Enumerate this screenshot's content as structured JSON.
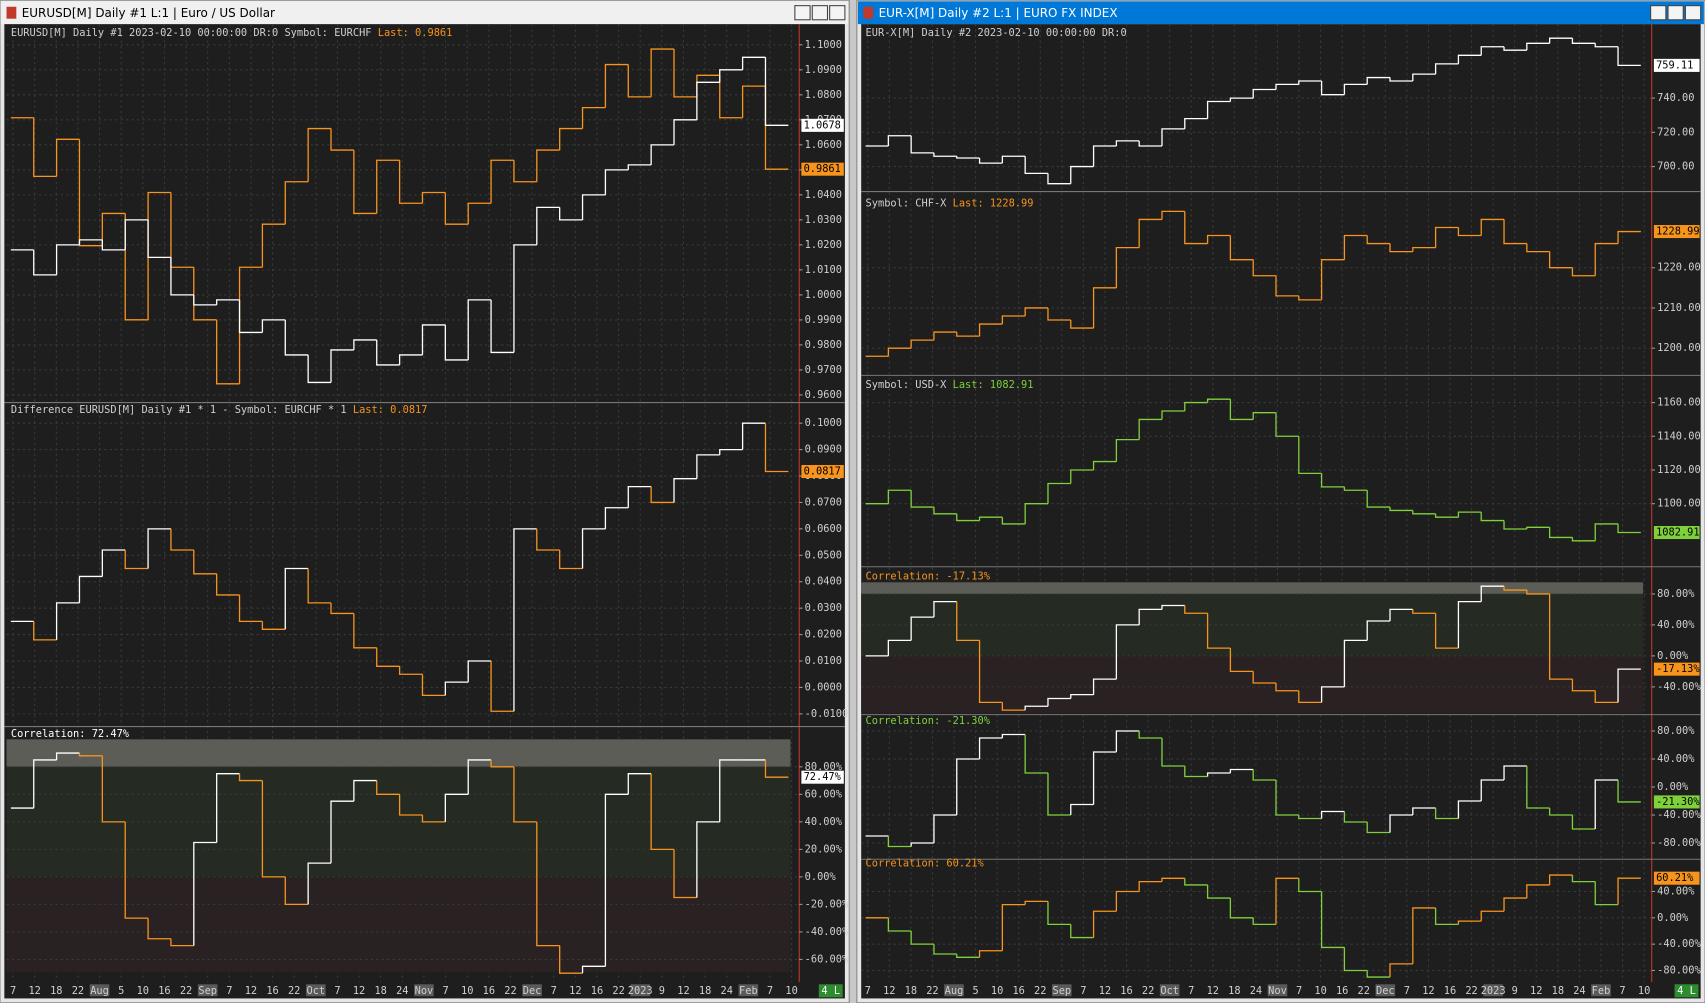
{
  "windows": [
    {
      "title": "EURUSD[M]  Daily  #1 L:1 | Euro / US Dollar",
      "status": "4 L",
      "xlabels": [
        "7",
        "12",
        "18",
        "22",
        "Aug",
        "5",
        "10",
        "16",
        "22",
        "Sep",
        "7",
        "12",
        "16",
        "22",
        "Oct",
        "7",
        "12",
        "18",
        "24",
        "Nov",
        "7",
        "10",
        "16",
        "22",
        "Dec",
        "7",
        "12",
        "16",
        "22",
        "2023",
        "9",
        "12",
        "18",
        "24",
        "Feb",
        "7",
        "10"
      ],
      "panes": [
        {
          "header": [
            {
              "text": "EURUSD[M]  Daily  #1 2023-02-10 00:00:00 DR:0 Symbol: EURCHF",
              "color": "#cfcfcf"
            },
            {
              "text": "  Last: 0.9861",
              "color": "#f7941d"
            }
          ],
          "ylim": [
            0.958,
            1.105
          ],
          "y2lim": [
            0.9475,
            1.009
          ],
          "yticks": [
            {
              "value": 1.1,
              "label": "1.1000"
            },
            {
              "value": 1.09,
              "label": "1.0900"
            },
            {
              "value": 1.08,
              "label": "1.0800"
            },
            {
              "value": 1.07,
              "label": "1.0700"
            },
            {
              "value": 1.06,
              "label": "1.0600"
            },
            {
              "value": 1.05,
              "label": "1.0500"
            },
            {
              "value": 1.04,
              "label": "1.0400"
            },
            {
              "value": 1.03,
              "label": "1.0300"
            },
            {
              "value": 1.02,
              "label": "1.0200"
            },
            {
              "value": 1.01,
              "label": "1.0100"
            },
            {
              "value": 1,
              "label": "1.0000"
            },
            {
              "value": 0.99,
              "label": "0.9900"
            },
            {
              "value": 0.98,
              "label": "0.9800"
            },
            {
              "value": 0.97,
              "label": "0.9700"
            },
            {
              "value": 0.96,
              "label": "0.9600"
            }
          ],
          "series": [
            {
              "color": "#f7941d",
              "axis": "y2",
              "label_color": "#f7941d",
              "last_label": "0.9861",
              "values": [
                0.9947,
                0.9849,
                0.9911,
                0.9733,
                0.9787,
                0.9609,
                0.9822,
                0.9697,
                0.9609,
                0.9502,
                0.9697,
                0.9769,
                0.984,
                0.9929,
                0.9893,
                0.9787,
                0.9876,
                0.9804,
                0.9822,
                0.9769,
                0.9804,
                0.9876,
                0.984,
                0.9893,
                0.9929,
                0.9964,
                1.0036,
                0.9982,
                1.0062,
                0.9982,
                1.0018,
                0.9947,
                1.0,
                0.9861
              ]
            },
            {
              "color": "#ffffff",
              "label_color": "#ffffff",
              "last_label": "1.0678",
              "values": [
                1.018,
                1.008,
                1.02,
                1.022,
                1.018,
                1.03,
                1.015,
                1.0,
                0.996,
                0.998,
                0.985,
                0.99,
                0.976,
                0.965,
                0.978,
                0.982,
                0.972,
                0.976,
                0.988,
                0.974,
                0.998,
                0.977,
                1.02,
                1.035,
                1.03,
                1.04,
                1.05,
                1.052,
                1.06,
                1.07,
                1.085,
                1.09,
                1.095,
                1.0678
              ]
            }
          ]
        },
        {
          "header": [
            {
              "text": "Difference EURUSD[M]  Daily  #1 * 1 - Symbol: EURCHF * 1",
              "color": "#cfcfcf"
            },
            {
              "text": "  Last: 0.0817",
              "color": "#f7941d"
            }
          ],
          "ylim": [
            -0.013,
            0.102
          ],
          "yticks": [
            {
              "value": 0.1,
              "label": "0.1000"
            },
            {
              "value": 0.09,
              "label": "0.0900"
            },
            {
              "value": 0.08,
              "label": "0.0800"
            },
            {
              "value": 0.07,
              "label": "0.0700"
            },
            {
              "value": 0.06,
              "label": "0.0600"
            },
            {
              "value": 0.05,
              "label": "0.0500"
            },
            {
              "value": 0.04,
              "label": "0.0400"
            },
            {
              "value": 0.03,
              "label": "0.0300"
            },
            {
              "value": 0.02,
              "label": "0.0200"
            },
            {
              "value": 0.01,
              "label": "0.0100"
            },
            {
              "value": 0,
              "label": "0.0000"
            },
            {
              "value": -0.01,
              "label": "-0.0100"
            }
          ],
          "series": [
            {
              "color": "#ffffff",
              "down_color": "#f7941d",
              "label_color": "#f7941d",
              "last_label": "0.0817",
              "values": [
                0.025,
                0.018,
                0.032,
                0.042,
                0.052,
                0.045,
                0.06,
                0.052,
                0.043,
                0.035,
                0.025,
                0.022,
                0.045,
                0.032,
                0.028,
                0.015,
                0.008,
                0.005,
                -0.003,
                0.002,
                0.01,
                -0.009,
                0.06,
                0.052,
                0.045,
                0.06,
                0.068,
                0.076,
                0.07,
                0.079,
                0.088,
                0.09,
                0.1,
                0.0817
              ]
            }
          ]
        },
        {
          "header": [
            {
              "text": "Correlation: 72.47%",
              "color": "#ffffff"
            }
          ],
          "bands": true,
          "ylim": [
            -69,
            100
          ],
          "yticks": [
            {
              "value": 80,
              "label": "80.00%"
            },
            {
              "value": 60,
              "label": "60.00%"
            },
            {
              "value": 40,
              "label": "40.00%"
            },
            {
              "value": 20,
              "label": "20.00%"
            },
            {
              "value": 0,
              "label": "0.00%"
            },
            {
              "value": -20,
              "label": "-20.00%"
            },
            {
              "value": -40,
              "label": "-40.00%"
            },
            {
              "value": -60,
              "label": "-60.00%"
            }
          ],
          "series": [
            {
              "color": "#ffffff",
              "down_color": "#f7941d",
              "label_color": "#ffffff",
              "last_label": "72.47%",
              "values": [
                50,
                85,
                90,
                88,
                40,
                -30,
                -45,
                -50,
                25,
                75,
                70,
                0,
                -20,
                10,
                55,
                70,
                60,
                45,
                40,
                60,
                85,
                80,
                40,
                -50,
                -70,
                -65,
                60,
                75,
                20,
                -15,
                40,
                85,
                85,
                72.47
              ]
            }
          ]
        }
      ]
    },
    {
      "title": "EUR-X[M]  Daily  #2 L:1 | EURO FX INDEX",
      "status": "4 L",
      "xlabels": [
        "7",
        "12",
        "18",
        "22",
        "Aug",
        "5",
        "10",
        "16",
        "22",
        "Sep",
        "7",
        "12",
        "16",
        "22",
        "Oct",
        "7",
        "12",
        "18",
        "24",
        "Nov",
        "7",
        "10",
        "16",
        "22",
        "Dec",
        "7",
        "12",
        "16",
        "22",
        "2023",
        "9",
        "12",
        "18",
        "24",
        "Feb",
        "7",
        "10"
      ],
      "panes": [
        {
          "header": [
            {
              "text": "EUR-X[M]  Daily  #2 2023-02-10 00:00:00 DR:0",
              "color": "#cfcfcf"
            }
          ],
          "ylim": [
            686,
            782
          ],
          "yticks": [
            {
              "value": 740,
              "label": "740.00"
            },
            {
              "value": 720,
              "label": "720.00"
            },
            {
              "value": 700,
              "label": "700.00"
            }
          ],
          "series": [
            {
              "color": "#ffffff",
              "label_color": "#ffffff",
              "last_label": "759.11",
              "values": [
                712,
                718,
                708,
                706,
                705,
                702,
                706,
                696,
                690,
                700,
                712,
                715,
                712,
                722,
                728,
                738,
                740,
                745,
                748,
                750,
                742,
                748,
                752,
                750,
                754,
                760,
                765,
                770,
                768,
                772,
                775,
                772,
                770,
                759.11
              ]
            }
          ]
        },
        {
          "header": [
            {
              "text": "Symbol: CHF-X",
              "color": "#cfcfcf"
            },
            {
              "text": "  Last: 1228.99",
              "color": "#f7941d"
            }
          ],
          "ylim": [
            1193,
            1238
          ],
          "yticks": [
            {
              "value": 1220,
              "label": "1220.00"
            },
            {
              "value": 1210,
              "label": "1210.00"
            },
            {
              "value": 1200,
              "label": "1200.00"
            }
          ],
          "series": [
            {
              "color": "#f7941d",
              "label_color": "#f7941d",
              "last_label": "1228.99",
              "values": [
                1198,
                1200,
                1202,
                1204,
                1203,
                1206,
                1208,
                1210,
                1207,
                1205,
                1215,
                1225,
                1232,
                1234,
                1226,
                1228,
                1222,
                1218,
                1213,
                1212,
                1222,
                1228,
                1226,
                1224,
                1225,
                1230,
                1228,
                1232,
                1226,
                1224,
                1220,
                1218,
                1226,
                1228.99
              ]
            }
          ]
        },
        {
          "header": [
            {
              "text": "Symbol: USD-X",
              "color": "#cfcfcf"
            },
            {
              "text": "  Last: 1082.91",
              "color": "#7fd13b"
            }
          ],
          "ylim": [
            1063,
            1176
          ],
          "yticks": [
            {
              "value": 1160,
              "label": "1160.00"
            },
            {
              "value": 1140,
              "label": "1140.00"
            },
            {
              "value": 1120,
              "label": "1120.00"
            },
            {
              "value": 1100,
              "label": "1100.00"
            }
          ],
          "series": [
            {
              "color": "#7fd13b",
              "label_color": "#7fd13b",
              "last_label": "1082.91",
              "values": [
                1100,
                1108,
                1098,
                1094,
                1090,
                1092,
                1088,
                1100,
                1112,
                1120,
                1125,
                1138,
                1150,
                1155,
                1160,
                1162,
                1150,
                1154,
                1140,
                1118,
                1110,
                1108,
                1098,
                1096,
                1094,
                1092,
                1095,
                1090,
                1085,
                1086,
                1080,
                1078,
                1088,
                1082.91
              ]
            }
          ]
        },
        {
          "header": [
            {
              "text": "Correlation: -17.13%",
              "color": "#f7941d"
            }
          ],
          "bands": true,
          "ylim": [
            -74,
            95
          ],
          "yticks": [
            {
              "value": 80,
              "label": "80.00%"
            },
            {
              "value": 40,
              "label": "40.00%"
            },
            {
              "value": 0,
              "label": "0.00%"
            },
            {
              "value": -40,
              "label": "-40.00%"
            }
          ],
          "series": [
            {
              "color": "#ffffff",
              "down_color": "#f7941d",
              "label_color": "#f7941d",
              "last_label": "-17.13%",
              "values": [
                0,
                20,
                50,
                70,
                20,
                -60,
                -70,
                -65,
                -55,
                -50,
                -30,
                40,
                60,
                65,
                55,
                10,
                -20,
                -35,
                -45,
                -60,
                -40,
                20,
                45,
                60,
                55,
                10,
                70,
                90,
                85,
                80,
                -30,
                -45,
                -60,
                -17.13
              ]
            }
          ]
        },
        {
          "header": [
            {
              "text": "Correlation: -21.30%",
              "color": "#7fd13b"
            }
          ],
          "ylim": [
            -103,
            99
          ],
          "yticks": [
            {
              "value": 80,
              "label": "80.00%"
            },
            {
              "value": 40,
              "label": "40.00%"
            },
            {
              "value": 0,
              "label": "0.00%"
            },
            {
              "value": -40,
              "label": "-40.00%"
            },
            {
              "value": -80,
              "label": "-80.00%"
            }
          ],
          "series": [
            {
              "color": "#ffffff",
              "down_color": "#7fd13b",
              "label_color": "#7fd13b",
              "last_label": "-21.30%",
              "values": [
                -70,
                -85,
                -80,
                -40,
                40,
                70,
                75,
                20,
                -40,
                -25,
                50,
                80,
                70,
                30,
                15,
                20,
                25,
                10,
                -40,
                -45,
                -35,
                -50,
                -65,
                -40,
                -30,
                -45,
                -20,
                10,
                30,
                -30,
                -40,
                -60,
                10,
                -21.3
              ]
            }
          ]
        },
        {
          "header": [
            {
              "text": "Correlation: 60.21%",
              "color": "#f7941d"
            }
          ],
          "ylim": [
            -101,
            89
          ],
          "yticks": [
            {
              "value": 40,
              "label": "40.00%"
            },
            {
              "value": 0,
              "label": "0.00%"
            },
            {
              "value": -40,
              "label": "-40.00%"
            },
            {
              "value": -80,
              "label": "-80.00%"
            }
          ],
          "series": [
            {
              "color": "#f7941d",
              "down_color": "#7fd13b",
              "label_color": "#f7941d",
              "last_label": "60.21%",
              "values": [
                0,
                -20,
                -40,
                -55,
                -60,
                -50,
                20,
                25,
                -10,
                -30,
                10,
                40,
                55,
                60,
                50,
                30,
                0,
                -10,
                60,
                40,
                -45,
                -80,
                -90,
                -70,
                15,
                -10,
                -5,
                10,
                30,
                50,
                65,
                55,
                20,
                60.21
              ]
            }
          ]
        }
      ]
    }
  ]
}
